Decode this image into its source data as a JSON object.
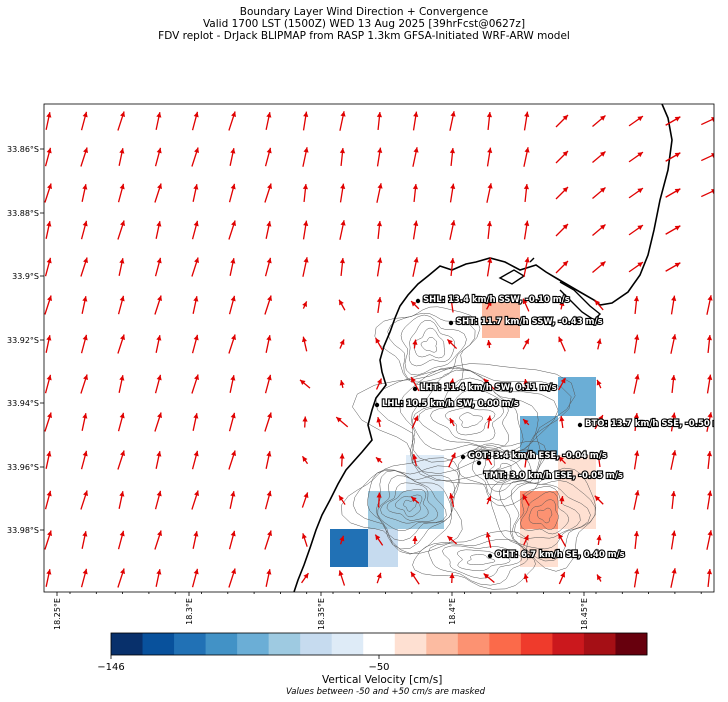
{
  "figure": {
    "title_line1": "Boundary Layer Wind Direction + Convergence",
    "title_line2": "Valid 1700 LST (1500Z) WED 13 Aug 2025 [39hrFcst@0627z]",
    "title_line3": "FDV replot - DrJack BLIPMAP from RASP 1.3km GFSA-Initiated WRF-ARW model"
  },
  "map": {
    "lat_ticks": [
      "33.86°S",
      "33.88°S",
      "33.9°S",
      "33.92°S",
      "33.94°S",
      "33.96°S",
      "33.98°S"
    ],
    "lon_ticks": [
      "18.25°E",
      "18.3°E",
      "18.35°E",
      "18.4°E",
      "18.45°E"
    ],
    "arrow_color": "#e00000",
    "stations": [
      {
        "label": "SHL: 13.4 km/h SSW, -0.10 m/s"
      },
      {
        "label": "SHT: 11.7 km/h SSW, -0.43 m/s"
      },
      {
        "label": "LHT: 11.4 km/h SW, 0.11 m/s"
      },
      {
        "label": "LHL: 10.5 km/h SW, 0.00 m/s"
      },
      {
        "label": "BTO: 13.7 km/h SSE, -0.50 m/s"
      },
      {
        "label": "GOT: 3.4 km/h ESE, -0.04 m/s"
      },
      {
        "label": "TMT: 3.0 km/h ESE, -0.05 m/s"
      },
      {
        "label": "OHT: 6.7 km/h SE, 0.40 m/s"
      }
    ]
  },
  "colorbar": {
    "label": "Vertical Velocity [cm/s]",
    "note": "Values between -50 and +50 cm/s are masked",
    "tick_labels": [
      "−146",
      "−50"
    ],
    "colors": [
      "#08306b",
      "#08519c",
      "#2171b5",
      "#4292c6",
      "#6baed6",
      "#9ecae1",
      "#c6dbef",
      "#deebf7",
      "#ffffff",
      "#fee0d2",
      "#fcbba1",
      "#fc9272",
      "#fb6a4a",
      "#ef3b2c",
      "#cb181d",
      "#a50f15",
      "#67000d"
    ]
  }
}
